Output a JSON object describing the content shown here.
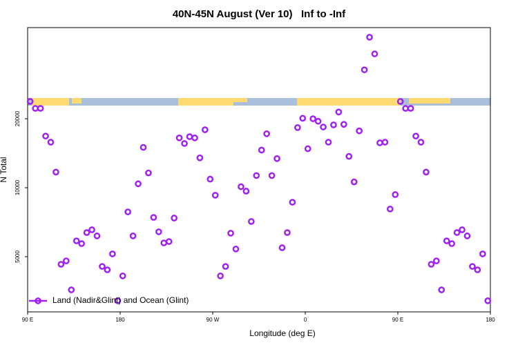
{
  "chart_data": {
    "type": "scatter",
    "title": "40N-45N August (Ver 10)   Inf to -Inf",
    "x_label": "Longitude (deg E)",
    "y_label": "N Total",
    "ylog": true,
    "xlim": [
      90,
      540
    ],
    "ylim": [
      2870,
      50000
    ],
    "xticks": [
      {
        "value": 90,
        "label": "90 E"
      },
      180,
      {
        "value": 270,
        "label": "90 W"
      },
      {
        "value": 360,
        "label": "0"
      },
      {
        "value": 450,
        "label": "90 E"
      },
      {
        "value": 540,
        "label": "180"
      }
    ],
    "yticks": [
      5000,
      10000,
      20000
    ],
    "legend_position": "bottom-left",
    "series": [
      {
        "name": "Land (Nadir&Glint) and Ocean (Glint)",
        "color": "#a020f0",
        "x": [
          92.5,
          97.5,
          102.5,
          107.5,
          112.5,
          117.5,
          122.5,
          127.5,
          132.5,
          137.5,
          142.5,
          147.5,
          152.5,
          157.5,
          162.5,
          167.5,
          172.5,
          177.5,
          182.5,
          187.5,
          192.5,
          197.5,
          202.5,
          207.5,
          212.5,
          217.5,
          222.5,
          227.5,
          232.5,
          237.5,
          242.5,
          247.5,
          252.5,
          257.5,
          262.5,
          267.5,
          272.5,
          277.5,
          282.5,
          287.5,
          292.5,
          297.5,
          302.5,
          307.5,
          312.5,
          317.5,
          322.5,
          327.5,
          332.5,
          337.5,
          342.5,
          347.5,
          352.5,
          357.5,
          362.5,
          367.5,
          372.5,
          377.5,
          382.5,
          387.5,
          392.5,
          397.5,
          402.5,
          407.5,
          412.5,
          417.5,
          422.5,
          427.5,
          432.5,
          437.5,
          442.5,
          447.5,
          452.5,
          457.5,
          462.5,
          467.5,
          472.5,
          477.5,
          482.5,
          487.5,
          492.5,
          497.5,
          502.5,
          507.5,
          512.5,
          517.5,
          522.5,
          527.5,
          532.5,
          537.5
        ],
        "values": [
          23800,
          22200,
          22200,
          16800,
          15800,
          11700,
          4630,
          4790,
          3580,
          5860,
          5700,
          6370,
          6550,
          6160,
          4530,
          4380,
          5140,
          3210,
          4120,
          7840,
          6160,
          10400,
          15000,
          11600,
          7420,
          6420,
          5740,
          5820,
          7370,
          16500,
          15600,
          16700,
          16500,
          13500,
          17900,
          10900,
          9270,
          4120,
          4530,
          6330,
          5400,
          10100,
          9660,
          7120,
          11300,
          14600,
          17200,
          11300,
          13400,
          5470,
          6370,
          8640,
          18300,
          20100,
          14800,
          20000,
          19500,
          18400,
          15800,
          18800,
          21400,
          18900,
          13700,
          10600,
          17700,
          32700,
          45400,
          38400,
          15700,
          15800,
          8070,
          9330,
          23800,
          22200,
          22200,
          16800,
          15800,
          11700,
          4630,
          4790,
          3580,
          5860,
          5700,
          6370,
          6550,
          6160,
          4530,
          4380,
          5140,
          3210
        ]
      }
    ]
  }
}
